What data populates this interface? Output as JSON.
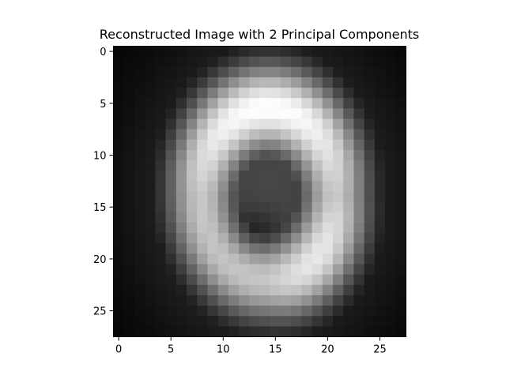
{
  "title": "Reconstructed Image with 2 Principal Components",
  "image": {
    "rows": 28,
    "cols": 28,
    "colormap": "gray",
    "description_free": true
  },
  "axes": {
    "x_ticks": [
      0,
      5,
      10,
      15,
      20,
      25
    ],
    "y_ticks": [
      0,
      5,
      10,
      15,
      20,
      25
    ],
    "x_range": [
      -0.5,
      27.5
    ],
    "y_range": [
      -0.5,
      27.5
    ],
    "y_inverted": true
  },
  "colors": {
    "axis": "#000000",
    "background": "#ffffff"
  }
}
